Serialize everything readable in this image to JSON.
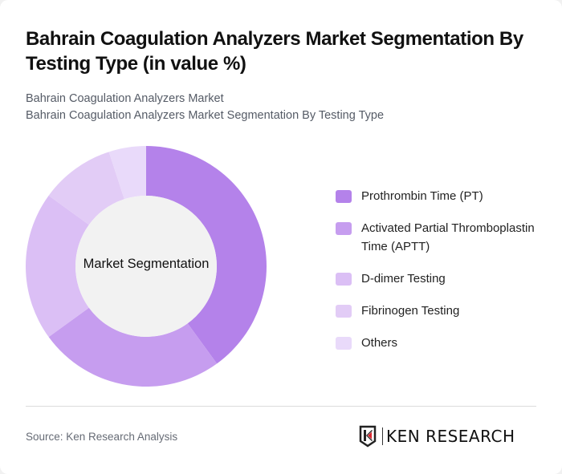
{
  "header": {
    "title": "Bahrain Coagulation Analyzers Market Segmentation By Testing Type (in value %)",
    "subtitle_line1": "Bahrain Coagulation Analyzers Market",
    "subtitle_line2": "Bahrain Coagulation Analyzers Market Segmentation By Testing Type"
  },
  "chart": {
    "center_label": "Market Segmentation"
  },
  "legend": {
    "items": [
      {
        "label": "Prothrombin Time (PT)",
        "color": "#b482ea"
      },
      {
        "label": "Activated Partial Thromboplastin Time (APTT)",
        "color": "#c69def"
      },
      {
        "label": "D-dimer Testing",
        "color": "#dbbff5"
      },
      {
        "label": "Fibrinogen Testing",
        "color": "#e2ccf6"
      },
      {
        "label": "Others",
        "color": "#e9dafa"
      }
    ]
  },
  "footer": {
    "source": "Source: Ken Research Analysis",
    "logo_text": "KEN RESEARCH"
  },
  "chart_data": {
    "type": "pie",
    "subtype": "donut",
    "title": "Bahrain Coagulation Analyzers Market Segmentation By Testing Type (in value %)",
    "center_label": "Market Segmentation",
    "categories": [
      "Prothrombin Time (PT)",
      "Activated Partial Thromboplastin Time (APTT)",
      "D-dimer Testing",
      "Fibrinogen Testing",
      "Others"
    ],
    "values": [
      40,
      25,
      20,
      10,
      5
    ],
    "colors": [
      "#b482ea",
      "#c69def",
      "#dbbff5",
      "#e2ccf6",
      "#e9dafa"
    ],
    "legend_position": "right"
  }
}
